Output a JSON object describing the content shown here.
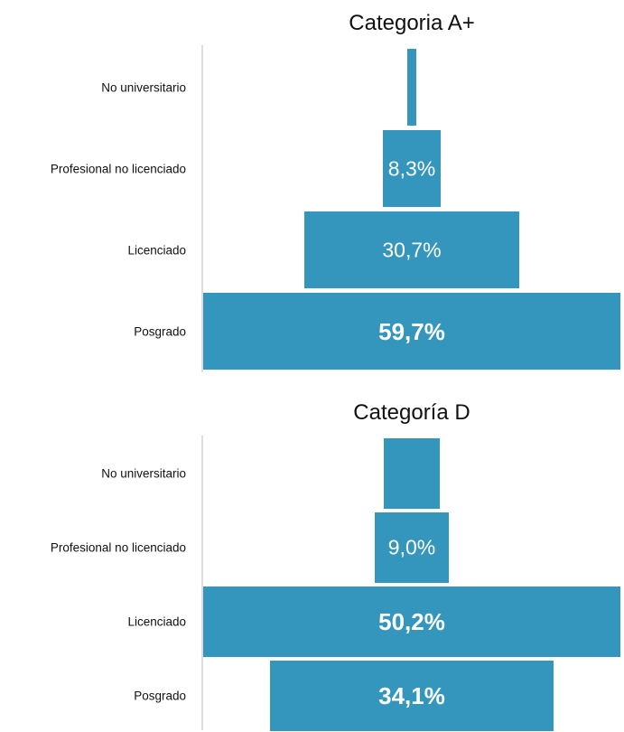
{
  "colors": {
    "bar": "#3596bd",
    "axis": "#dddddd"
  },
  "chart_data": [
    {
      "type": "bar",
      "orientation": "horizontal-centered",
      "title": "Categoria A+",
      "categories": [
        "No universitario",
        "Profesional no licenciado",
        "Licenciado",
        "Posgrado"
      ],
      "values": [
        1.3,
        8.3,
        30.7,
        59.7
      ],
      "value_labels": [
        "",
        "8,3%",
        "30,7%",
        "59,7%"
      ],
      "max_value": 59.7
    },
    {
      "type": "bar",
      "orientation": "horizontal-centered",
      "title": "Categoría D",
      "categories": [
        "No universitario",
        "Profesional no licenciado",
        "Licenciado",
        "Posgrado"
      ],
      "values": [
        6.8,
        9.0,
        50.2,
        34.1
      ],
      "value_labels": [
        "",
        "9,0%",
        "50,2%",
        "34,1%"
      ],
      "max_value": 50.2
    }
  ]
}
